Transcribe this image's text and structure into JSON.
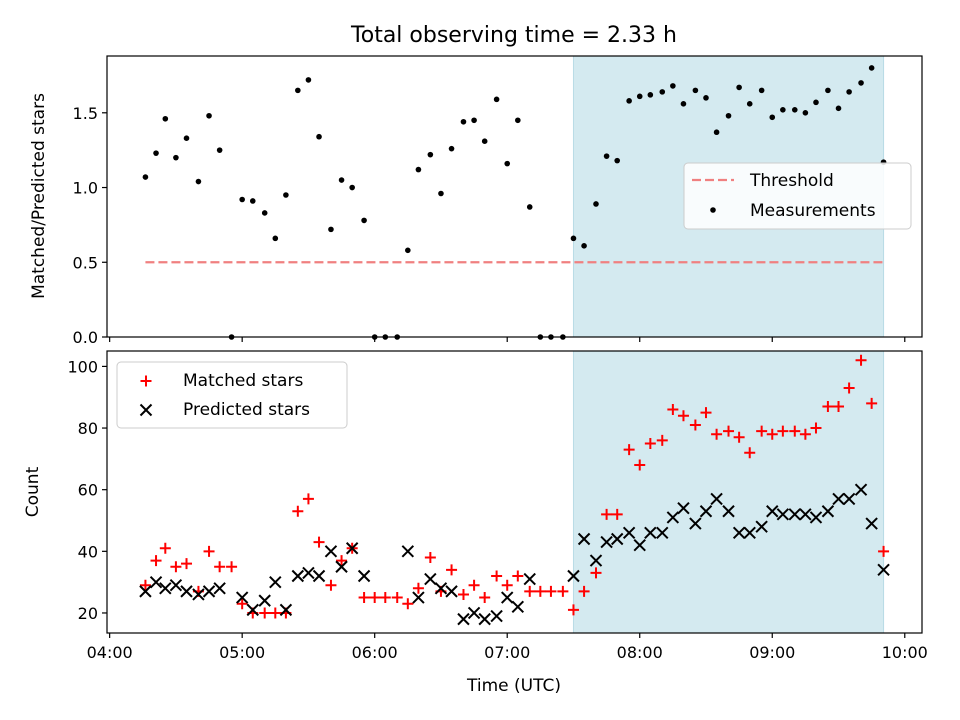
{
  "figure_title": "Total observing time = 2.33 h",
  "chart_data": [
    {
      "type": "scatter",
      "panel": "top",
      "ylabel": "Matched/Predicted stars",
      "ylim": [
        0,
        1.88
      ],
      "yticks": [
        0.0,
        0.5,
        1.0,
        1.5
      ],
      "ytick_labels": [
        "0.0",
        "0.5",
        "1.0",
        "1.5"
      ],
      "xlim_hours": [
        3.98,
        10.13
      ],
      "highlight_span_hours": [
        7.5,
        9.84
      ],
      "highlight_color": "#d4eaf0",
      "threshold": {
        "value": 0.5,
        "x_hours": [
          4.27,
          9.84
        ],
        "color": "#f08080",
        "style": "dashed"
      },
      "legend": {
        "position": "center-right",
        "entries": [
          {
            "name": "Threshold",
            "marker": "dashed-line",
            "color": "#f08080"
          },
          {
            "name": "Measurements",
            "marker": "dot",
            "color": "#000000"
          }
        ]
      },
      "series": [
        {
          "name": "Measurements",
          "color": "#000000",
          "points": [
            [
              4.27,
              1.07
            ],
            [
              4.35,
              1.23
            ],
            [
              4.42,
              1.46
            ],
            [
              4.5,
              1.2
            ],
            [
              4.58,
              1.33
            ],
            [
              4.67,
              1.04
            ],
            [
              4.75,
              1.48
            ],
            [
              4.83,
              1.25
            ],
            [
              4.92,
              0.0
            ],
            [
              5.0,
              0.92
            ],
            [
              5.08,
              0.91
            ],
            [
              5.17,
              0.83
            ],
            [
              5.25,
              0.66
            ],
            [
              5.33,
              0.95
            ],
            [
              5.42,
              1.65
            ],
            [
              5.5,
              1.72
            ],
            [
              5.58,
              1.34
            ],
            [
              5.67,
              0.72
            ],
            [
              5.75,
              1.05
            ],
            [
              5.83,
              1.0
            ],
            [
              5.92,
              0.78
            ],
            [
              6.0,
              0.0
            ],
            [
              6.08,
              0.0
            ],
            [
              6.17,
              0.0
            ],
            [
              6.25,
              0.58
            ],
            [
              6.33,
              1.12
            ],
            [
              6.42,
              1.22
            ],
            [
              6.5,
              0.96
            ],
            [
              6.58,
              1.26
            ],
            [
              6.67,
              1.44
            ],
            [
              6.75,
              1.45
            ],
            [
              6.83,
              1.31
            ],
            [
              6.92,
              1.59
            ],
            [
              7.0,
              1.16
            ],
            [
              7.08,
              1.45
            ],
            [
              7.17,
              0.87
            ],
            [
              7.25,
              0.0
            ],
            [
              7.33,
              0.0
            ],
            [
              7.42,
              0.0
            ],
            [
              7.5,
              0.66
            ],
            [
              7.58,
              0.61
            ],
            [
              7.67,
              0.89
            ],
            [
              7.75,
              1.21
            ],
            [
              7.83,
              1.18
            ],
            [
              7.92,
              1.58
            ],
            [
              8.0,
              1.61
            ],
            [
              8.08,
              1.62
            ],
            [
              8.17,
              1.64
            ],
            [
              8.25,
              1.68
            ],
            [
              8.33,
              1.56
            ],
            [
              8.42,
              1.65
            ],
            [
              8.5,
              1.6
            ],
            [
              8.58,
              1.37
            ],
            [
              8.67,
              1.48
            ],
            [
              8.75,
              1.67
            ],
            [
              8.83,
              1.56
            ],
            [
              8.92,
              1.65
            ],
            [
              9.0,
              1.47
            ],
            [
              9.08,
              1.52
            ],
            [
              9.17,
              1.52
            ],
            [
              9.25,
              1.5
            ],
            [
              9.33,
              1.57
            ],
            [
              9.42,
              1.65
            ],
            [
              9.5,
              1.53
            ],
            [
              9.58,
              1.64
            ],
            [
              9.67,
              1.7
            ],
            [
              9.75,
              1.8
            ],
            [
              9.84,
              1.17
            ]
          ]
        }
      ]
    },
    {
      "type": "scatter",
      "panel": "bottom",
      "xlabel": "Time (UTC)",
      "ylabel": "Count",
      "ylim": [
        13.5,
        105
      ],
      "yticks": [
        20,
        40,
        60,
        80,
        100
      ],
      "ytick_labels": [
        "20",
        "40",
        "60",
        "80",
        "100"
      ],
      "xlim_hours": [
        3.98,
        10.13
      ],
      "xticks_hours": [
        4,
        5,
        6,
        7,
        8,
        9,
        10
      ],
      "xtick_labels": [
        "04:00",
        "05:00",
        "06:00",
        "07:00",
        "08:00",
        "09:00",
        "10:00"
      ],
      "highlight_span_hours": [
        7.5,
        9.84
      ],
      "highlight_color": "#d4eaf0",
      "legend": {
        "position": "top-left",
        "entries": [
          {
            "name": "Matched stars",
            "marker": "plus",
            "color": "#ff0000"
          },
          {
            "name": "Predicted stars",
            "marker": "x",
            "color": "#000000"
          }
        ]
      },
      "series": [
        {
          "name": "Matched stars",
          "marker": "plus",
          "color": "#ff0000",
          "points": [
            [
              4.27,
              29
            ],
            [
              4.35,
              37
            ],
            [
              4.42,
              41
            ],
            [
              4.5,
              35
            ],
            [
              4.58,
              36
            ],
            [
              4.67,
              27
            ],
            [
              4.75,
              40
            ],
            [
              4.83,
              35
            ],
            [
              4.92,
              35
            ],
            [
              5.0,
              23
            ],
            [
              5.08,
              20
            ],
            [
              5.17,
              20
            ],
            [
              5.25,
              20
            ],
            [
              5.33,
              20
            ],
            [
              5.42,
              53
            ],
            [
              5.5,
              57
            ],
            [
              5.58,
              43
            ],
            [
              5.67,
              29
            ],
            [
              5.75,
              37
            ],
            [
              5.83,
              41
            ],
            [
              5.92,
              25
            ],
            [
              6.0,
              25
            ],
            [
              6.08,
              25
            ],
            [
              6.17,
              25
            ],
            [
              6.25,
              23
            ],
            [
              6.33,
              28
            ],
            [
              6.42,
              38
            ],
            [
              6.5,
              27
            ],
            [
              6.58,
              34
            ],
            [
              6.67,
              26
            ],
            [
              6.75,
              29
            ],
            [
              6.83,
              25
            ],
            [
              6.92,
              32
            ],
            [
              7.0,
              29
            ],
            [
              7.08,
              32
            ],
            [
              7.17,
              27
            ],
            [
              7.25,
              27
            ],
            [
              7.33,
              27
            ],
            [
              7.42,
              27
            ],
            [
              7.5,
              21
            ],
            [
              7.58,
              27
            ],
            [
              7.67,
              33
            ],
            [
              7.75,
              52
            ],
            [
              7.83,
              52
            ],
            [
              7.92,
              73
            ],
            [
              8.0,
              68
            ],
            [
              8.08,
              75
            ],
            [
              8.17,
              76
            ],
            [
              8.25,
              86
            ],
            [
              8.33,
              84
            ],
            [
              8.42,
              81
            ],
            [
              8.5,
              85
            ],
            [
              8.58,
              78
            ],
            [
              8.67,
              79
            ],
            [
              8.75,
              77
            ],
            [
              8.83,
              72
            ],
            [
              8.92,
              79
            ],
            [
              9.0,
              78
            ],
            [
              9.08,
              79
            ],
            [
              9.17,
              79
            ],
            [
              9.25,
              78
            ],
            [
              9.33,
              80
            ],
            [
              9.42,
              87
            ],
            [
              9.5,
              87
            ],
            [
              9.58,
              93
            ],
            [
              9.67,
              102
            ],
            [
              9.75,
              88
            ],
            [
              9.84,
              40
            ]
          ]
        },
        {
          "name": "Predicted stars",
          "marker": "x",
          "color": "#000000",
          "points": [
            [
              4.27,
              27
            ],
            [
              4.35,
              30
            ],
            [
              4.42,
              28
            ],
            [
              4.5,
              29
            ],
            [
              4.58,
              27
            ],
            [
              4.67,
              26
            ],
            [
              4.75,
              27
            ],
            [
              4.83,
              28
            ],
            [
              5.0,
              25
            ],
            [
              5.08,
              21
            ],
            [
              5.17,
              24
            ],
            [
              5.25,
              30
            ],
            [
              5.33,
              21
            ],
            [
              5.42,
              32
            ],
            [
              5.5,
              33
            ],
            [
              5.58,
              32
            ],
            [
              5.67,
              40
            ],
            [
              5.75,
              35
            ],
            [
              5.83,
              41
            ],
            [
              5.92,
              32
            ],
            [
              6.25,
              40
            ],
            [
              6.33,
              25
            ],
            [
              6.42,
              31
            ],
            [
              6.5,
              28
            ],
            [
              6.58,
              27
            ],
            [
              6.67,
              18
            ],
            [
              6.75,
              20
            ],
            [
              6.83,
              18
            ],
            [
              6.92,
              19
            ],
            [
              7.0,
              25
            ],
            [
              7.08,
              22
            ],
            [
              7.17,
              31
            ],
            [
              7.5,
              32
            ],
            [
              7.58,
              44
            ],
            [
              7.67,
              37
            ],
            [
              7.75,
              43
            ],
            [
              7.83,
              44
            ],
            [
              7.92,
              46
            ],
            [
              8.0,
              42
            ],
            [
              8.08,
              46
            ],
            [
              8.17,
              46
            ],
            [
              8.25,
              51
            ],
            [
              8.33,
              54
            ],
            [
              8.42,
              49
            ],
            [
              8.5,
              53
            ],
            [
              8.58,
              57
            ],
            [
              8.67,
              53
            ],
            [
              8.75,
              46
            ],
            [
              8.83,
              46
            ],
            [
              8.92,
              48
            ],
            [
              9.0,
              53
            ],
            [
              9.08,
              52
            ],
            [
              9.17,
              52
            ],
            [
              9.25,
              52
            ],
            [
              9.33,
              51
            ],
            [
              9.42,
              53
            ],
            [
              9.5,
              57
            ],
            [
              9.58,
              57
            ],
            [
              9.67,
              60
            ],
            [
              9.75,
              49
            ],
            [
              9.84,
              34
            ]
          ]
        }
      ]
    }
  ]
}
